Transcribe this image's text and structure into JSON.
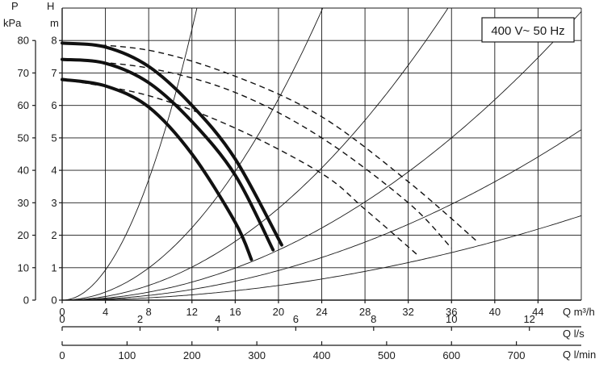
{
  "supply_label": "400 V~ 50 Hz",
  "chart_data": {
    "type": "line",
    "title": "",
    "grid": true,
    "axes": {
      "left_outer": {
        "label_top": "P",
        "label_bottom": "kPa",
        "range": [
          0,
          80
        ],
        "ticks": [
          "0",
          "10",
          "20",
          "30",
          "40",
          "50",
          "60",
          "70",
          "80"
        ]
      },
      "left_inner": {
        "label_top": "H",
        "label_bottom": "m",
        "range": [
          0,
          8
        ],
        "ticks": [
          "0",
          "1",
          "2",
          "3",
          "4",
          "5",
          "6",
          "7",
          "8"
        ]
      },
      "x_primary": {
        "label": "Q m³/h",
        "range": [
          0,
          48
        ],
        "ticks": [
          "0",
          "4",
          "8",
          "12",
          "16",
          "20",
          "24",
          "28",
          "32",
          "36",
          "40",
          "44"
        ]
      },
      "x_secondary": {
        "label": "Q l/s",
        "ticks": [
          "0",
          "2",
          "4",
          "6",
          "8",
          "10",
          "12"
        ],
        "tick_values": [
          0,
          2,
          4,
          6,
          8,
          10,
          12
        ]
      },
      "x_tertiary": {
        "label": "Q l/min",
        "ticks": [
          "0",
          "100",
          "200",
          "300",
          "400",
          "500",
          "600",
          "700"
        ],
        "tick_values": [
          0,
          100,
          200,
          300,
          400,
          500,
          600,
          700
        ]
      }
    },
    "series": [
      {
        "style": "solid-thick",
        "points": [
          [
            0,
            6.8
          ],
          [
            4,
            6.6
          ],
          [
            8,
            5.95
          ],
          [
            12,
            4.5
          ],
          [
            16,
            2.4
          ],
          [
            17.5,
            1.25
          ]
        ]
      },
      {
        "style": "solid-thick",
        "points": [
          [
            0,
            7.42
          ],
          [
            4,
            7.3
          ],
          [
            8,
            6.7
          ],
          [
            12,
            5.5
          ],
          [
            16,
            3.85
          ],
          [
            19.5,
            1.55
          ]
        ]
      },
      {
        "style": "solid-thick",
        "points": [
          [
            0,
            7.92
          ],
          [
            4,
            7.8
          ],
          [
            8,
            7.2
          ],
          [
            12,
            6.0
          ],
          [
            16,
            4.35
          ],
          [
            20.3,
            1.7
          ]
        ]
      },
      {
        "style": "dashed",
        "points": [
          [
            0,
            6.8
          ],
          [
            8,
            6.3
          ],
          [
            16,
            5.3
          ],
          [
            24,
            3.9
          ],
          [
            28,
            2.8
          ],
          [
            33,
            1.35
          ]
        ]
      },
      {
        "style": "dashed",
        "points": [
          [
            0,
            7.42
          ],
          [
            8,
            7.15
          ],
          [
            16,
            6.4
          ],
          [
            24,
            5.0
          ],
          [
            32,
            3.0
          ],
          [
            36,
            1.6
          ]
        ]
      },
      {
        "style": "dashed",
        "points": [
          [
            0,
            7.92
          ],
          [
            8,
            7.7
          ],
          [
            16,
            6.9
          ],
          [
            24,
            5.65
          ],
          [
            32,
            3.65
          ],
          [
            38.4,
            1.8
          ]
        ]
      }
    ],
    "system_curves": [
      {
        "k": 0.058
      },
      {
        "k": 0.0155
      },
      {
        "k": 0.00707
      },
      {
        "k": 0.00386
      },
      {
        "k": 0.00228
      },
      {
        "k": 0.00113
      }
    ]
  }
}
